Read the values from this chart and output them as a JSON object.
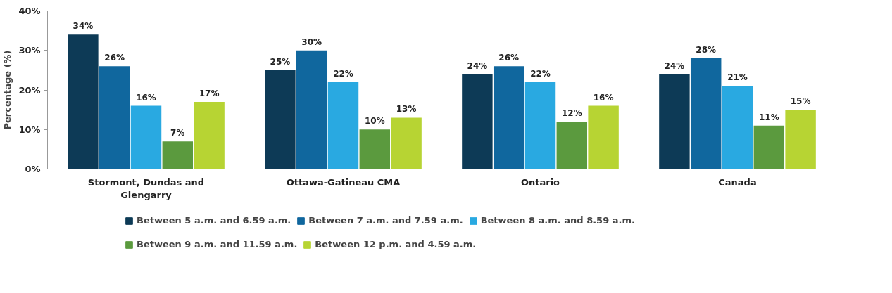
{
  "chart_data": {
    "type": "bar",
    "ylabel": "Percentage (%)",
    "categories": [
      "Stormont, Dundas and Glengarry",
      "Ottawa-Gatineau CMA",
      "Ontario",
      "Canada"
    ],
    "series": [
      {
        "name": "Between 5 a.m. and 6.59 a.m.",
        "color": "#0d3a56",
        "values": [
          34,
          25,
          24,
          24
        ],
        "value_labels": [
          "34%",
          "25%",
          "24%",
          "24%"
        ]
      },
      {
        "name": "Between 7 a.m. and 7.59 a.m.",
        "color": "#10679e",
        "values": [
          26,
          30,
          26,
          28
        ],
        "value_labels": [
          "26%",
          "30%",
          "26%",
          "28%"
        ]
      },
      {
        "name": "Between 8 a.m. and 8.59 a.m.",
        "color": "#29a9e1",
        "values": [
          16,
          22,
          22,
          21
        ],
        "value_labels": [
          "16%",
          "22%",
          "22%",
          "21%"
        ]
      },
      {
        "name": "Between 9 a.m. and 11.59 a.m.",
        "color": "#5b9a3e",
        "values": [
          7,
          10,
          12,
          11
        ],
        "value_labels": [
          "7%",
          "10%",
          "12%",
          "11%"
        ]
      },
      {
        "name": "Between 12 p.m. and 4.59 a.m.",
        "color": "#b7d433",
        "values": [
          17,
          13,
          16,
          15
        ],
        "value_labels": [
          "17%",
          "13%",
          "16%",
          "15%"
        ]
      }
    ],
    "ylim": [
      0,
      40
    ],
    "yticks": [
      {
        "value": 0,
        "label": "0%"
      },
      {
        "value": 10,
        "label": "10%"
      },
      {
        "value": 20,
        "label": "20%"
      },
      {
        "value": 30,
        "label": "30%"
      },
      {
        "value": 40,
        "label": "40%"
      }
    ],
    "grid": false,
    "legend": "bottom"
  }
}
